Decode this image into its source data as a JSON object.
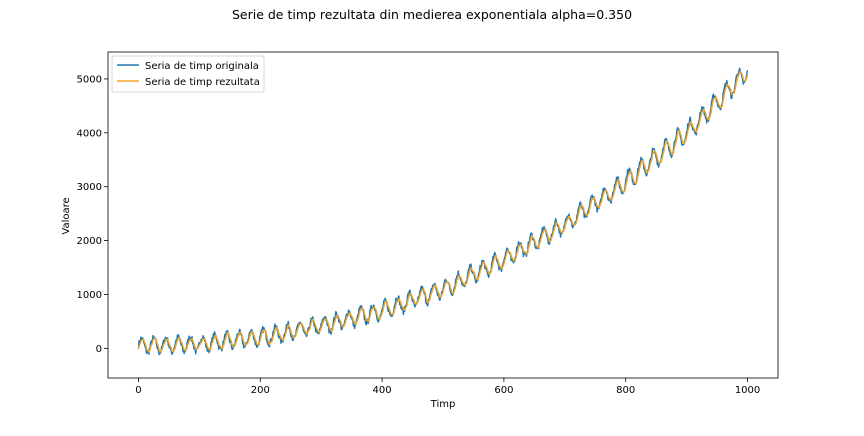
{
  "chart_data": {
    "type": "line",
    "title": "Serie de timp rezultata din medierea exponentiala alpha=0.350",
    "xlabel": "Timp",
    "ylabel": "Valoare",
    "xlim": [
      -50,
      1050
    ],
    "ylim": [
      -550,
      5500
    ],
    "xticks": [
      0,
      200,
      400,
      600,
      800,
      1000
    ],
    "yticks": [
      0,
      1000,
      2000,
      3000,
      4000,
      5000
    ],
    "grid": false,
    "legend_position": "top-left",
    "series": [
      {
        "name": "Seria de timp originala",
        "color": "#1f77b4",
        "description_of_values": "quadratic trend + seasonal oscillation + noise",
        "trend_points": [
          [
            0,
            50
          ],
          [
            100,
            80
          ],
          [
            200,
            200
          ],
          [
            300,
            420
          ],
          [
            400,
            700
          ],
          [
            500,
            1100
          ],
          [
            600,
            1650
          ],
          [
            700,
            2300
          ],
          [
            800,
            3100
          ],
          [
            900,
            4000
          ],
          [
            1000,
            5150
          ]
        ],
        "oscillation_amplitude": 170,
        "oscillation_period": 20
      },
      {
        "name": "Seria de timp rezultata",
        "color": "#f5a623",
        "description_of_values": "exponential smoothing of original with alpha=0.35",
        "alpha": 0.35
      }
    ]
  }
}
